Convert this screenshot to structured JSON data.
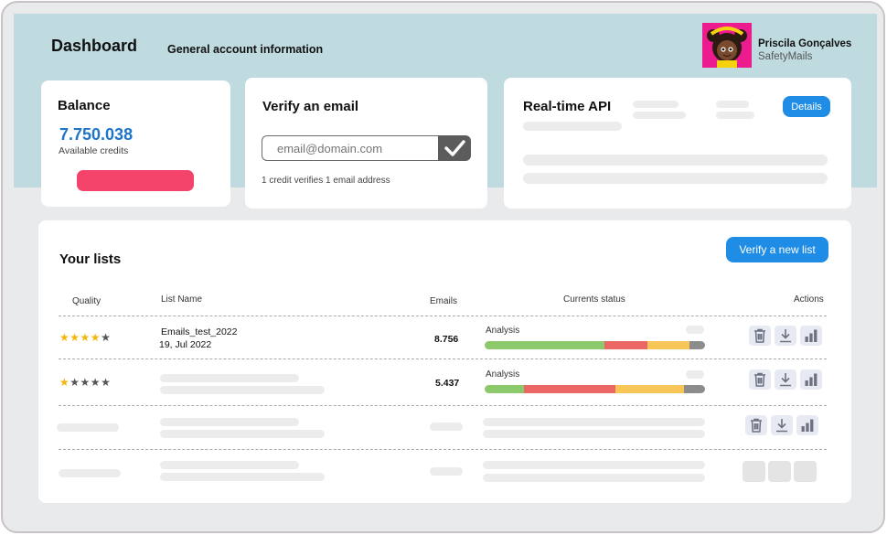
{
  "header": {
    "title": "Dashboard",
    "subtitle": "General account information",
    "user": {
      "name": "Priscila Gonçalves",
      "company": "SafetyMails"
    }
  },
  "balance": {
    "title": "Balance",
    "value": "7.750.038",
    "caption": "Available credits"
  },
  "verify": {
    "title": "Verify an email",
    "placeholder": "email@domain.com",
    "note": "1 credit verifies 1 email address"
  },
  "api": {
    "title": "Real-time API",
    "details_label": "Details"
  },
  "lists": {
    "title": "Your lists",
    "new_list_label": "Verify a new list",
    "columns": {
      "quality": "Quality",
      "list_name": "List Name",
      "emails": "Emails",
      "status": "Currents status",
      "actions": "Actions"
    },
    "rows": [
      {
        "stars": 4,
        "name": "Emails_test_2022",
        "date": "19, Jul 2022",
        "emails": "8.756",
        "status_label": "Analysis",
        "segments": [
          0.545,
          0.195,
          0.19,
          0.07
        ]
      },
      {
        "stars": 1,
        "emails": "5.437",
        "status_label": "Analysis",
        "segments": [
          0.18,
          0.415,
          0.31,
          0.095
        ]
      }
    ]
  },
  "colors": {
    "header_bg": "#bfdbe0",
    "accent_blue": "#1f8de6",
    "balance_value": "#1d74c9",
    "balance_button": "#f5446c",
    "star": "#f2b70a",
    "status_green": "#8bc96a",
    "status_red": "#eb6763",
    "status_yellow": "#f7c657",
    "status_gray": "#8c8c8c"
  },
  "icons": [
    "trash-icon",
    "download-icon",
    "bar-chart-icon",
    "checkmark-icon"
  ]
}
